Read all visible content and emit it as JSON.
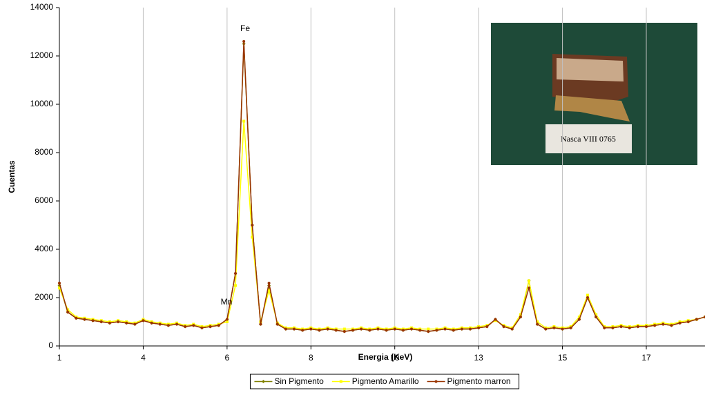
{
  "chart_data": {
    "type": "line",
    "x_label": "Energia (KeV)",
    "y_label": "Cuentas",
    "annotations": [
      "Fe",
      "Mn"
    ],
    "categories": [
      "1",
      null,
      null,
      null,
      null,
      null,
      null,
      null,
      null,
      null,
      "4",
      null,
      null,
      null,
      null,
      null,
      null,
      null,
      null,
      null,
      "6",
      null,
      null,
      null,
      null,
      null,
      null,
      null,
      null,
      null,
      "8",
      null,
      null,
      null,
      null,
      null,
      null,
      null,
      null,
      null,
      "10",
      null,
      null,
      null,
      null,
      null,
      null,
      null,
      null,
      null,
      "13",
      null,
      null,
      null,
      null,
      null,
      null,
      null,
      null,
      null,
      "15",
      null,
      null,
      null,
      null,
      null,
      null,
      null,
      null,
      null,
      "17",
      null,
      null,
      null,
      null,
      null,
      null,
      null
    ],
    "ylim": [
      0,
      14000
    ],
    "yticks": [
      0,
      2000,
      4000,
      6000,
      8000,
      10000,
      12000,
      14000
    ],
    "grid": "x",
    "legend": "bottom",
    "series": [
      {
        "name": "Sin Pigmento",
        "color": "#808000",
        "marker": "diamond",
        "values": [
          2500,
          1400,
          1150,
          1100,
          1050,
          1000,
          950,
          1000,
          950,
          900,
          1050,
          950,
          900,
          850,
          900,
          800,
          850,
          750,
          800,
          850,
          1100,
          3000,
          12500,
          5000,
          900,
          2500,
          900,
          700,
          700,
          650,
          700,
          650,
          700,
          650,
          600,
          650,
          700,
          650,
          700,
          650,
          700,
          650,
          700,
          650,
          600,
          650,
          700,
          650,
          700,
          700,
          750,
          800,
          1100,
          800,
          700,
          1200,
          2700,
          900,
          700,
          750,
          700,
          750,
          1100,
          2000,
          1200,
          750,
          750,
          800,
          750,
          800,
          800,
          850,
          900,
          850,
          950,
          1000,
          1100,
          1200
        ]
      },
      {
        "name": "Pigmento Amarillo",
        "color": "#ffff00",
        "marker": "square",
        "values": [
          2400,
          1500,
          1200,
          1150,
          1100,
          1050,
          1000,
          1050,
          1000,
          950,
          1100,
          1000,
          950,
          900,
          950,
          850,
          900,
          800,
          850,
          900,
          1000,
          2500,
          9300,
          4500,
          1000,
          2300,
          950,
          750,
          750,
          700,
          750,
          700,
          750,
          700,
          700,
          700,
          750,
          700,
          750,
          700,
          750,
          700,
          750,
          700,
          700,
          700,
          750,
          700,
          750,
          750,
          800,
          850,
          1050,
          850,
          750,
          1300,
          2700,
          1000,
          750,
          800,
          750,
          800,
          1200,
          2100,
          1300,
          800,
          800,
          850,
          800,
          850,
          850,
          900,
          950,
          900,
          1000,
          1050,
          1100,
          1200
        ]
      },
      {
        "name": "Pigmento marron",
        "color": "#993300",
        "marker": "circle",
        "values": [
          2600,
          1400,
          1150,
          1100,
          1050,
          1000,
          950,
          1000,
          950,
          900,
          1050,
          950,
          900,
          850,
          900,
          800,
          850,
          750,
          800,
          850,
          1100,
          3000,
          12600,
          5000,
          900,
          2600,
          900,
          700,
          700,
          650,
          700,
          650,
          700,
          650,
          600,
          650,
          700,
          650,
          700,
          650,
          700,
          650,
          700,
          650,
          600,
          650,
          700,
          650,
          700,
          700,
          750,
          800,
          1100,
          800,
          700,
          1200,
          2400,
          900,
          700,
          750,
          700,
          750,
          1100,
          2000,
          1200,
          750,
          750,
          800,
          750,
          800,
          800,
          850,
          900,
          850,
          950,
          1000,
          1100,
          1200
        ]
      }
    ]
  },
  "inset_photo_caption": "Nasca VIII   0765"
}
